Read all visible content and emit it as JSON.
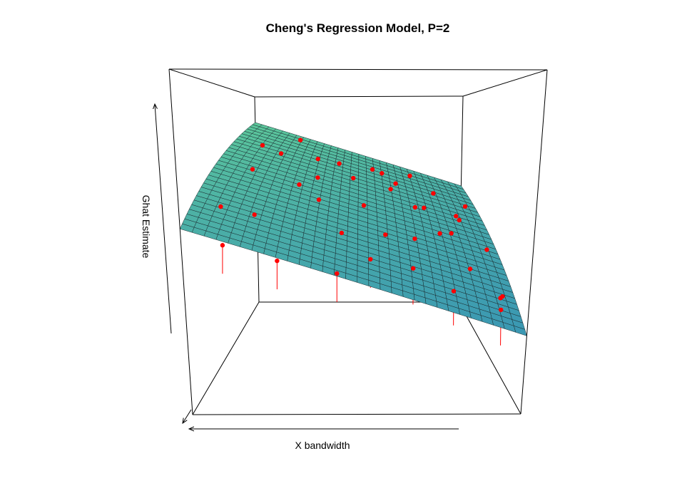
{
  "chart_data": {
    "type": "scatter",
    "subtype": "3d-scatter-with-regression-surface",
    "title": "Cheng's Regression Model, P=2",
    "xlabel": "X bandwidth",
    "ylabel": "",
    "zlabel": "Ghat Estimate",
    "tick_labels": "none",
    "surface": {
      "model": "plane",
      "grid_lines": 30,
      "colors": [
        "#5cc79a",
        "#3a97b3"
      ]
    },
    "point_color": "#ff0000",
    "series": [
      {
        "name": "",
        "points": [
          {
            "x": 0.05,
            "y": 0.34,
            "z": 0.57
          },
          {
            "x": 0.09,
            "y": 0.15,
            "z": 0.47
          },
          {
            "x": 0.14,
            "y": 0.44,
            "z": 0.69
          },
          {
            "x": 0.17,
            "y": 0.28,
            "z": 0.55
          },
          {
            "x": 0.21,
            "y": 0.62,
            "z": 0.74
          },
          {
            "x": 0.26,
            "y": 0.1,
            "z": 0.43
          },
          {
            "x": 0.29,
            "y": 0.51,
            "z": 0.63
          },
          {
            "x": 0.33,
            "y": 0.79,
            "z": 0.71
          },
          {
            "x": 0.37,
            "y": 0.37,
            "z": 0.59
          },
          {
            "x": 0.41,
            "y": 0.93,
            "z": 0.68
          },
          {
            "x": 0.45,
            "y": 0.21,
            "z": 0.5
          },
          {
            "x": 0.48,
            "y": 0.67,
            "z": 0.64
          },
          {
            "x": 0.52,
            "y": 0.46,
            "z": 0.56
          },
          {
            "x": 0.56,
            "y": 0.85,
            "z": 0.66
          },
          {
            "x": 0.59,
            "y": 0.31,
            "z": 0.48
          },
          {
            "x": 0.63,
            "y": 0.72,
            "z": 0.59
          },
          {
            "x": 0.67,
            "y": 0.14,
            "z": 0.4
          },
          {
            "x": 0.71,
            "y": 0.56,
            "z": 0.54
          },
          {
            "x": 0.74,
            "y": 0.95,
            "z": 0.62
          },
          {
            "x": 0.78,
            "y": 0.4,
            "z": 0.47
          },
          {
            "x": 0.82,
            "y": 0.81,
            "z": 0.56
          },
          {
            "x": 0.86,
            "y": 0.24,
            "z": 0.38
          },
          {
            "x": 0.89,
            "y": 0.63,
            "z": 0.48
          },
          {
            "x": 0.93,
            "y": 0.06,
            "z": 0.29
          },
          {
            "x": 0.96,
            "y": 0.47,
            "z": 0.4
          },
          {
            "x": 0.98,
            "y": 0.88,
            "z": 0.49
          },
          {
            "x": 0.12,
            "y": 0.71,
            "z": 0.77
          },
          {
            "x": 0.24,
            "y": 0.89,
            "z": 0.79
          },
          {
            "x": 0.35,
            "y": 0.58,
            "z": 0.65
          },
          {
            "x": 0.44,
            "y": 0.05,
            "z": 0.4
          },
          {
            "x": 0.54,
            "y": 0.19,
            "z": 0.42
          },
          {
            "x": 0.61,
            "y": 0.97,
            "z": 0.63
          },
          {
            "x": 0.69,
            "y": 0.35,
            "z": 0.46
          },
          {
            "x": 0.76,
            "y": 0.68,
            "z": 0.52
          },
          {
            "x": 0.84,
            "y": 0.52,
            "z": 0.45
          },
          {
            "x": 0.91,
            "y": 0.77,
            "z": 0.47
          },
          {
            "x": 0.95,
            "y": 0.18,
            "z": 0.3
          },
          {
            "x": 0.99,
            "y": 0.33,
            "z": 0.27
          },
          {
            "x": 0.66,
            "y": 0.83,
            "z": 0.6
          },
          {
            "x": 0.79,
            "y": 0.09,
            "z": 0.34
          }
        ]
      }
    ]
  }
}
